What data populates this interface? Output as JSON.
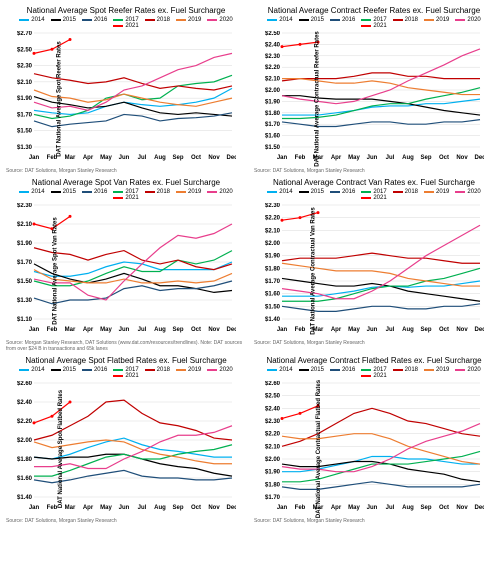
{
  "months": [
    "Jan",
    "Feb",
    "Mar",
    "Apr",
    "May",
    "Jun",
    "Jul",
    "Aug",
    "Sep",
    "Oct",
    "Nov",
    "Dec"
  ],
  "series_meta": [
    {
      "name": "2014",
      "color": "#00b0f0"
    },
    {
      "name": "2015",
      "color": "#000000"
    },
    {
      "name": "2016",
      "color": "#1f4e79"
    },
    {
      "name": "2017",
      "color": "#00b050"
    },
    {
      "name": "2018",
      "color": "#c00000"
    },
    {
      "name": "2019",
      "color": "#ed7d31"
    },
    {
      "name": "2020",
      "color": "#e83e8c"
    },
    {
      "name": "2021",
      "color": "#ff0000"
    }
  ],
  "common": {
    "grid_color": "#d9d9d9",
    "axis_color": "#888888",
    "background": "#ffffff",
    "title_fontsize": 8,
    "label_fontsize": 6,
    "tick_fontsize": 6,
    "line_width": 1.2,
    "source1": "Source: DAT Solutions, Morgan Stanley Research",
    "source_long": "Source: Morgan Stanley Research, DAT Solutions (www.dat.com/resources/trendlines). Note: DAT sources from over $24 B in transactions and 65k lanes"
  },
  "charts": [
    {
      "title": "National Average Spot Reefer Rates ex. Fuel Surcharge",
      "ylabel": "DAT National Average Spot Reefer Rates",
      "ymin": 1.3,
      "ymax": 2.7,
      "ystep": 0.2,
      "prefix": "$",
      "source_key": "source1",
      "series": {
        "2014": [
          1.75,
          1.72,
          1.7,
          1.72,
          1.8,
          1.85,
          1.82,
          1.8,
          1.82,
          1.85,
          1.9,
          2.02
        ],
        "2015": [
          1.92,
          1.85,
          1.82,
          1.78,
          1.8,
          1.85,
          1.78,
          1.72,
          1.7,
          1.72,
          1.7,
          1.68
        ],
        "2016": [
          1.62,
          1.55,
          1.58,
          1.6,
          1.62,
          1.7,
          1.68,
          1.62,
          1.65,
          1.66,
          1.68,
          1.72
        ],
        "2017": [
          1.7,
          1.65,
          1.68,
          1.75,
          1.9,
          1.95,
          1.88,
          1.9,
          2.05,
          2.08,
          2.1,
          2.18
        ],
        "2018": [
          2.2,
          2.15,
          2.12,
          2.08,
          2.1,
          2.15,
          2.08,
          2.02,
          2.05,
          2.02,
          2.0,
          2.05
        ],
        "2019": [
          2.0,
          1.92,
          1.9,
          1.85,
          1.88,
          1.95,
          1.9,
          1.85,
          1.82,
          1.8,
          1.85,
          1.9
        ],
        "2020": [
          1.85,
          1.78,
          1.8,
          1.75,
          1.85,
          2.0,
          2.05,
          2.15,
          2.25,
          2.3,
          2.4,
          2.45
        ],
        "2021": [
          2.45,
          2.5,
          2.62,
          null,
          null,
          null,
          null,
          null,
          null,
          null,
          null,
          null
        ]
      }
    },
    {
      "title": "National Average Contract Reefer Rates ex. Fuel Surcharge",
      "ylabel": "DAT National Average Contractual Reefer Rates",
      "ymin": 1.5,
      "ymax": 2.5,
      "ystep": 0.1,
      "prefix": "$",
      "source_key": "source1",
      "series": {
        "2014": [
          1.78,
          1.78,
          1.78,
          1.8,
          1.82,
          1.85,
          1.86,
          1.86,
          1.88,
          1.88,
          1.9,
          1.92
        ],
        "2015": [
          1.95,
          1.95,
          1.93,
          1.92,
          1.92,
          1.92,
          1.9,
          1.88,
          1.85,
          1.82,
          1.8,
          1.78
        ],
        "2016": [
          1.72,
          1.7,
          1.68,
          1.68,
          1.7,
          1.72,
          1.72,
          1.7,
          1.7,
          1.72,
          1.72,
          1.74
        ],
        "2017": [
          1.75,
          1.75,
          1.76,
          1.78,
          1.82,
          1.86,
          1.88,
          1.88,
          1.92,
          1.95,
          1.98,
          2.02
        ],
        "2018": [
          2.08,
          2.1,
          2.1,
          2.1,
          2.12,
          2.15,
          2.15,
          2.12,
          2.12,
          2.1,
          2.1,
          2.1
        ],
        "2019": [
          2.1,
          2.1,
          2.08,
          2.06,
          2.06,
          2.08,
          2.06,
          2.02,
          2.0,
          1.98,
          1.96,
          1.96
        ],
        "2020": [
          1.95,
          1.92,
          1.9,
          1.88,
          1.9,
          1.95,
          2.0,
          2.08,
          2.15,
          2.22,
          2.3,
          2.36
        ],
        "2021": [
          2.38,
          2.4,
          2.42,
          null,
          null,
          null,
          null,
          null,
          null,
          null,
          null,
          null
        ]
      }
    },
    {
      "title": "National Average Spot Van Rates ex. Fuel Surcharge",
      "ylabel": "DAT National Average Spot Van Rates",
      "ymin": 1.1,
      "ymax": 2.3,
      "ystep": 0.2,
      "prefix": "$",
      "source_key": "source_long",
      "series": {
        "2014": [
          1.6,
          1.55,
          1.55,
          1.58,
          1.65,
          1.7,
          1.68,
          1.62,
          1.62,
          1.62,
          1.62,
          1.7
        ],
        "2015": [
          1.68,
          1.58,
          1.52,
          1.48,
          1.52,
          1.58,
          1.52,
          1.45,
          1.45,
          1.42,
          1.38,
          1.4
        ],
        "2016": [
          1.32,
          1.26,
          1.3,
          1.3,
          1.32,
          1.42,
          1.45,
          1.4,
          1.42,
          1.42,
          1.45,
          1.5
        ],
        "2017": [
          1.5,
          1.45,
          1.45,
          1.5,
          1.58,
          1.65,
          1.6,
          1.6,
          1.72,
          1.68,
          1.72,
          1.82
        ],
        "2018": [
          1.85,
          1.8,
          1.78,
          1.72,
          1.78,
          1.82,
          1.72,
          1.68,
          1.72,
          1.65,
          1.62,
          1.68
        ],
        "2019": [
          1.62,
          1.52,
          1.5,
          1.48,
          1.48,
          1.52,
          1.48,
          1.48,
          1.5,
          1.48,
          1.5,
          1.58
        ],
        "2020": [
          1.52,
          1.48,
          1.48,
          1.35,
          1.3,
          1.5,
          1.68,
          1.85,
          1.98,
          1.95,
          2.0,
          2.1
        ],
        "2021": [
          2.1,
          2.05,
          2.18,
          null,
          null,
          null,
          null,
          null,
          null,
          null,
          null,
          null
        ]
      }
    },
    {
      "title": "National Average Contract Van Rates ex. Fuel Surcharge",
      "ylabel": "DAT National Average Contractual Van Rates",
      "ymin": 1.4,
      "ymax": 2.3,
      "ystep": 0.1,
      "prefix": "$",
      "source_key": "source1",
      "series": {
        "2014": [
          1.58,
          1.58,
          1.58,
          1.6,
          1.62,
          1.65,
          1.66,
          1.65,
          1.66,
          1.66,
          1.68,
          1.7
        ],
        "2015": [
          1.72,
          1.7,
          1.68,
          1.66,
          1.66,
          1.68,
          1.66,
          1.62,
          1.6,
          1.58,
          1.56,
          1.54
        ],
        "2016": [
          1.5,
          1.48,
          1.46,
          1.46,
          1.48,
          1.5,
          1.5,
          1.48,
          1.48,
          1.5,
          1.5,
          1.52
        ],
        "2017": [
          1.54,
          1.54,
          1.54,
          1.56,
          1.6,
          1.64,
          1.66,
          1.66,
          1.7,
          1.72,
          1.76,
          1.8
        ],
        "2018": [
          1.86,
          1.88,
          1.88,
          1.88,
          1.9,
          1.92,
          1.9,
          1.88,
          1.88,
          1.86,
          1.84,
          1.84
        ],
        "2019": [
          1.84,
          1.82,
          1.8,
          1.78,
          1.78,
          1.78,
          1.76,
          1.72,
          1.7,
          1.68,
          1.66,
          1.66
        ],
        "2020": [
          1.64,
          1.62,
          1.6,
          1.56,
          1.56,
          1.62,
          1.7,
          1.8,
          1.9,
          1.98,
          2.06,
          2.14
        ],
        "2021": [
          2.18,
          2.2,
          2.24,
          null,
          null,
          null,
          null,
          null,
          null,
          null,
          null,
          null
        ]
      }
    },
    {
      "title": "National Average Spot Flatbed Rates ex. Fuel Surcharge",
      "ylabel": "DAT National Average Spot Flatbed Rates",
      "ymin": 1.4,
      "ymax": 2.6,
      "ystep": 0.2,
      "prefix": "$",
      "source_key": "source1",
      "series": {
        "2014": [
          1.82,
          1.8,
          1.85,
          1.92,
          1.98,
          2.02,
          1.95,
          1.9,
          1.88,
          1.85,
          1.82,
          1.82
        ],
        "2015": [
          1.82,
          1.8,
          1.82,
          1.82,
          1.85,
          1.85,
          1.8,
          1.75,
          1.72,
          1.7,
          1.65,
          1.62
        ],
        "2016": [
          1.58,
          1.55,
          1.58,
          1.62,
          1.65,
          1.68,
          1.62,
          1.6,
          1.6,
          1.58,
          1.58,
          1.6
        ],
        "2017": [
          1.62,
          1.62,
          1.68,
          1.75,
          1.82,
          1.85,
          1.8,
          1.8,
          1.85,
          1.88,
          1.9,
          1.95
        ],
        "2018": [
          2.0,
          2.05,
          2.15,
          2.25,
          2.4,
          2.42,
          2.28,
          2.18,
          2.15,
          2.1,
          2.02,
          2.0
        ],
        "2019": [
          1.98,
          1.92,
          1.95,
          1.98,
          2.0,
          1.98,
          1.9,
          1.85,
          1.82,
          1.78,
          1.75,
          1.75
        ],
        "2020": [
          1.72,
          1.72,
          1.75,
          1.7,
          1.7,
          1.8,
          1.88,
          1.98,
          2.05,
          2.05,
          2.08,
          2.15
        ],
        "2021": [
          2.18,
          2.25,
          2.4,
          null,
          null,
          null,
          null,
          null,
          null,
          null,
          null,
          null
        ]
      }
    },
    {
      "title": "National Average Contract Flatbed Rates ex. Fuel Surcharge",
      "ylabel": "DAT National Average Contractual Flatbed Rates",
      "ymin": 1.7,
      "ymax": 2.6,
      "ystep": 0.1,
      "prefix": "$",
      "source_key": "source1",
      "series": {
        "2014": [
          1.9,
          1.9,
          1.92,
          1.95,
          1.98,
          2.02,
          2.02,
          2.0,
          2.0,
          1.98,
          1.96,
          1.96
        ],
        "2015": [
          1.96,
          1.94,
          1.94,
          1.96,
          1.98,
          1.98,
          1.96,
          1.92,
          1.9,
          1.88,
          1.84,
          1.82
        ],
        "2016": [
          1.78,
          1.76,
          1.76,
          1.78,
          1.8,
          1.82,
          1.8,
          1.78,
          1.78,
          1.78,
          1.78,
          1.8
        ],
        "2017": [
          1.82,
          1.82,
          1.84,
          1.88,
          1.92,
          1.96,
          1.96,
          1.96,
          1.98,
          2.0,
          2.02,
          2.06
        ],
        "2018": [
          2.1,
          2.14,
          2.2,
          2.28,
          2.36,
          2.4,
          2.36,
          2.3,
          2.28,
          2.24,
          2.2,
          2.18
        ],
        "2019": [
          2.18,
          2.16,
          2.16,
          2.18,
          2.2,
          2.2,
          2.16,
          2.1,
          2.06,
          2.02,
          1.98,
          1.96
        ],
        "2020": [
          1.94,
          1.92,
          1.92,
          1.9,
          1.9,
          1.94,
          2.0,
          2.08,
          2.14,
          2.18,
          2.22,
          2.28
        ],
        "2021": [
          2.32,
          2.36,
          2.42,
          null,
          null,
          null,
          null,
          null,
          null,
          null,
          null,
          null
        ]
      }
    }
  ]
}
